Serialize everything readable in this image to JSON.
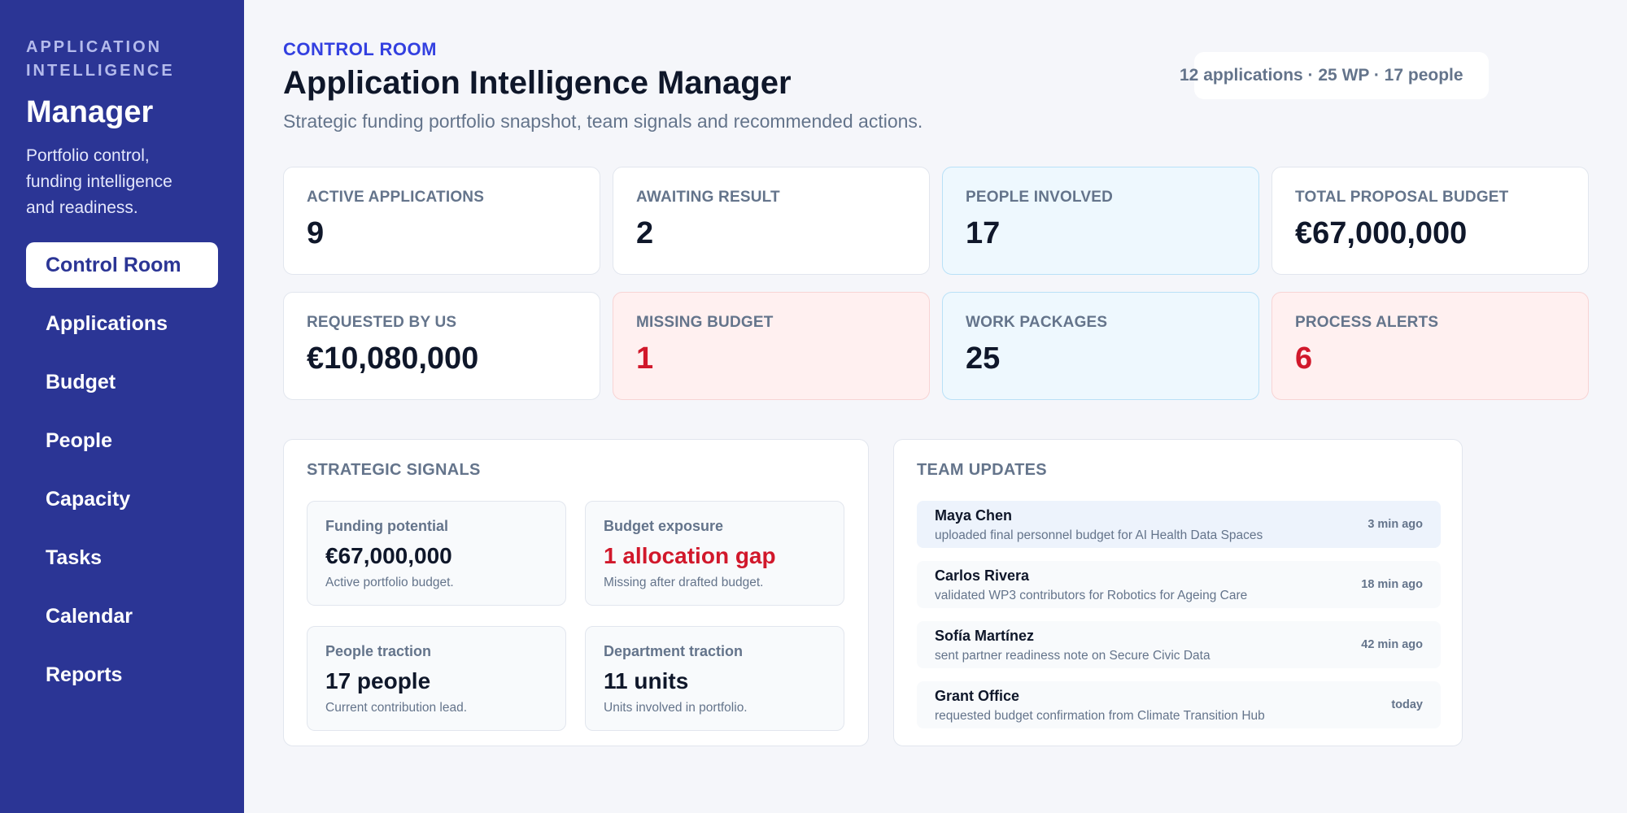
{
  "sidebar": {
    "eyebrow": "APPLICATION INTELLIGENCE",
    "brand": "Manager",
    "tagline": "Portfolio control, funding intelligence and readiness.",
    "items": [
      {
        "label": "Control Room",
        "active": true
      },
      {
        "label": "Applications"
      },
      {
        "label": "Budget"
      },
      {
        "label": "People"
      },
      {
        "label": "Capacity"
      },
      {
        "label": "Tasks"
      },
      {
        "label": "Calendar"
      },
      {
        "label": "Reports"
      }
    ]
  },
  "header": {
    "eyebrow": "CONTROL ROOM",
    "title": "Application Intelligence Manager",
    "subtitle": "Strategic funding portfolio snapshot, team signals and recommended actions.",
    "summary": "12 applications · 25 WP · 17 people"
  },
  "kpis": [
    {
      "label": "ACTIVE APPLICATIONS",
      "value": "9",
      "tone": "default"
    },
    {
      "label": "AWAITING RESULT",
      "value": "2",
      "tone": "default"
    },
    {
      "label": "PEOPLE INVOLVED",
      "value": "17",
      "tone": "blue"
    },
    {
      "label": "TOTAL PROPOSAL BUDGET",
      "value": "€67,000,000",
      "tone": "default"
    },
    {
      "label": "REQUESTED BY US",
      "value": "€10,080,000",
      "tone": "default"
    },
    {
      "label": "MISSING BUDGET",
      "value": "1",
      "tone": "red"
    },
    {
      "label": "WORK PACKAGES",
      "value": "25",
      "tone": "blue"
    },
    {
      "label": "PROCESS ALERTS",
      "value": "6",
      "tone": "red"
    }
  ],
  "signals": {
    "title": "STRATEGIC SIGNALS",
    "items": [
      {
        "label": "Funding potential",
        "value": "€67,000,000",
        "note": "Active portfolio budget."
      },
      {
        "label": "Budget exposure",
        "value": "1 allocation gap",
        "note": "Missing after drafted budget."
      },
      {
        "label": "People traction",
        "value": "17 people",
        "note": "Current contribution lead."
      },
      {
        "label": "Department traction",
        "value": "11 units",
        "note": "Units involved in portfolio."
      }
    ]
  },
  "updates": {
    "title": "TEAM UPDATES",
    "items": [
      {
        "name": "Maya Chen",
        "text": "uploaded final personnel budget for AI Health Data Spaces",
        "time": "3 min ago"
      },
      {
        "name": "Carlos Rivera",
        "text": "validated WP3 contributors for Robotics for Ageing Care",
        "time": "18 min ago"
      },
      {
        "name": "Sofía Martínez",
        "text": "sent partner readiness note on Secure Civic Data",
        "time": "42 min ago"
      },
      {
        "name": "Grant Office",
        "text": "requested budget confirmation from Climate Transition Hub",
        "time": "today"
      }
    ]
  },
  "colors": {
    "sidebar_bg": "#2b3595",
    "accent": "#3340e0",
    "alert": "#d1182b",
    "info_bg": "#eef8fe",
    "alert_bg": "#fff0f0"
  }
}
